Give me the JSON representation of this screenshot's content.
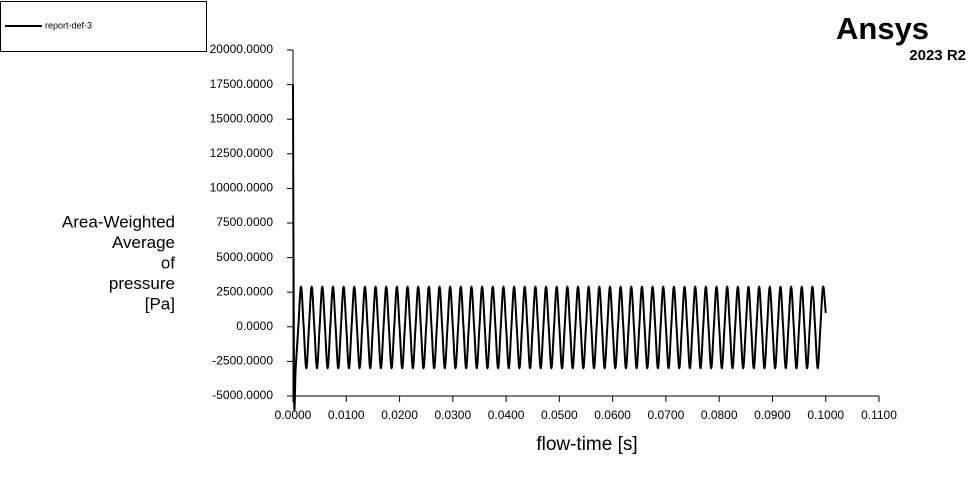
{
  "logo": {
    "name": "Ansys",
    "version": "2023 R2"
  },
  "chart_data": {
    "type": "line",
    "x_label": "flow-time [s]",
    "y_label": [
      "Area-Weighted",
      "Average",
      "of",
      "pressure",
      "[Pa]"
    ],
    "xlim": [
      0,
      0.11
    ],
    "ylim": [
      -5000,
      20000
    ],
    "xticks": [
      {
        "value": 0,
        "label": "0.0000"
      },
      {
        "value": 0.01,
        "label": "0.0100"
      },
      {
        "value": 0.02,
        "label": "0.0200"
      },
      {
        "value": 0.03,
        "label": "0.0300"
      },
      {
        "value": 0.04,
        "label": "0.0400"
      },
      {
        "value": 0.05,
        "label": "0.0500"
      },
      {
        "value": 0.06,
        "label": "0.0600"
      },
      {
        "value": 0.07,
        "label": "0.0700"
      },
      {
        "value": 0.08,
        "label": "0.0800"
      },
      {
        "value": 0.09,
        "label": "0.0900"
      },
      {
        "value": 0.1,
        "label": "0.1000"
      },
      {
        "value": 0.11,
        "label": "0.1100"
      }
    ],
    "yticks": [
      {
        "value": -5000,
        "label": "-5000.0000"
      },
      {
        "value": -2500,
        "label": "-2500.0000"
      },
      {
        "value": 0,
        "label": "0.0000"
      },
      {
        "value": 2500,
        "label": "2500.0000"
      },
      {
        "value": 5000,
        "label": "5000.0000"
      },
      {
        "value": 7500,
        "label": "7500.0000"
      },
      {
        "value": 10000,
        "label": "10000.0000"
      },
      {
        "value": 12500,
        "label": "12500.0000"
      },
      {
        "value": 15000,
        "label": "15000.0000"
      },
      {
        "value": 17500,
        "label": "17500.0000"
      },
      {
        "value": 20000,
        "label": "20000.0000"
      }
    ],
    "x": [
      0,
      0.0002,
      0.0005,
      0.001,
      0.0015,
      0.002,
      0.0025,
      0.003,
      0.0035,
      0.004,
      0.0045,
      0.005,
      0.0055,
      0.006,
      0.0065,
      0.007,
      0.0075,
      0.008,
      0.0085,
      0.009,
      0.0095,
      0.01,
      0.0105,
      0.011,
      0.0115,
      0.012,
      0.0125,
      0.013,
      0.0135,
      0.014,
      0.0145,
      0.015,
      0.0155,
      0.016,
      0.0165,
      0.017,
      0.0175,
      0.018,
      0.0185,
      0.019,
      0.0195,
      0.02,
      0.0205,
      0.021,
      0.0215,
      0.022,
      0.0225,
      0.023,
      0.0235,
      0.024,
      0.0245,
      0.025,
      0.0255,
      0.026,
      0.0265,
      0.027,
      0.0275,
      0.028,
      0.0285,
      0.029,
      0.0295,
      0.03,
      0.0305,
      0.031,
      0.0315,
      0.032,
      0.0325,
      0.033,
      0.0335,
      0.034,
      0.0345,
      0.035,
      0.0355,
      0.036,
      0.0365,
      0.037,
      0.0375,
      0.038,
      0.0385,
      0.039,
      0.0395,
      0.04,
      0.0405,
      0.041,
      0.0415,
      0.042,
      0.0425,
      0.043,
      0.0435,
      0.044,
      0.0445,
      0.045,
      0.0455,
      0.046,
      0.0465,
      0.047,
      0.0475,
      0.048,
      0.0485,
      0.049,
      0.0495,
      0.05,
      0.0505,
      0.051,
      0.0515,
      0.052,
      0.0525,
      0.053,
      0.0535,
      0.054,
      0.0545,
      0.055,
      0.0555,
      0.056,
      0.0565,
      0.057,
      0.0575,
      0.058,
      0.0585,
      0.059,
      0.0595,
      0.06,
      0.0605,
      0.061,
      0.0615,
      0.062,
      0.0625,
      0.063,
      0.0635,
      0.064,
      0.0645,
      0.065,
      0.0655,
      0.066,
      0.0665,
      0.067,
      0.0675,
      0.068,
      0.0685,
      0.069,
      0.0695,
      0.07,
      0.0705,
      0.071,
      0.0715,
      0.072,
      0.0725,
      0.073,
      0.0735,
      0.074,
      0.0745,
      0.075,
      0.0755,
      0.076,
      0.0765,
      0.077,
      0.0775,
      0.078,
      0.0785,
      0.079,
      0.0795,
      0.08,
      0.0805,
      0.081,
      0.0815,
      0.082,
      0.0825,
      0.083,
      0.0835,
      0.084,
      0.0845,
      0.085,
      0.0855,
      0.086,
      0.0865,
      0.087,
      0.0875,
      0.088,
      0.0885,
      0.089,
      0.0895,
      0.09,
      0.0905,
      0.091,
      0.0915,
      0.092,
      0.0925,
      0.093,
      0.0935,
      0.094,
      0.0945,
      0.095,
      0.0955,
      0.096,
      0.0965,
      0.097,
      0.0975,
      0.098,
      0.0985,
      0.099,
      0.0995,
      0.1
    ],
    "series": [
      {
        "name": "report-def-3",
        "color": "#000000",
        "values": [
          17500,
          -4700,
          -3000,
          0,
          2900,
          0,
          -3000,
          0,
          2900,
          0,
          -3000,
          0,
          2900,
          0,
          -3000,
          0,
          2900,
          0,
          -3000,
          0,
          2900,
          0,
          -3000,
          0,
          2900,
          0,
          -3000,
          0,
          2900,
          0,
          -3000,
          0,
          2900,
          0,
          -3000,
          0,
          2900,
          0,
          -3000,
          0,
          2900,
          0,
          -3000,
          0,
          2900,
          0,
          -3000,
          0,
          2900,
          0,
          -3000,
          0,
          2900,
          0,
          -3000,
          0,
          2900,
          0,
          -3000,
          0,
          2900,
          0,
          -3000,
          0,
          2900,
          0,
          -3000,
          0,
          2900,
          0,
          -3000,
          0,
          2900,
          0,
          -3000,
          0,
          2900,
          0,
          -3000,
          0,
          2900,
          0,
          -3000,
          0,
          2900,
          0,
          -3000,
          0,
          2900,
          0,
          -3000,
          0,
          2900,
          0,
          -3000,
          0,
          2900,
          0,
          -3000,
          0,
          2900,
          0,
          -3000,
          0,
          2900,
          0,
          -3000,
          0,
          2900,
          0,
          -3000,
          0,
          2900,
          0,
          -3000,
          0,
          2900,
          0,
          -3000,
          0,
          2900,
          0,
          -3000,
          0,
          2900,
          0,
          -3000,
          0,
          2900,
          0,
          -3000,
          0,
          2900,
          0,
          -3000,
          0,
          2900,
          0,
          -3000,
          0,
          2900,
          0,
          -3000,
          0,
          2900,
          0,
          -3000,
          0,
          2900,
          0,
          -3000,
          0,
          2900,
          0,
          -3000,
          0,
          2900,
          0,
          -3000,
          0,
          2900,
          0,
          -3000,
          0,
          2900,
          0,
          -3000,
          0,
          2900,
          0,
          -3000,
          0,
          2900,
          0,
          -3000,
          0,
          2900,
          0,
          -3000,
          0,
          2900,
          0,
          -3000,
          0,
          2900,
          0,
          -3000,
          0,
          2900,
          0,
          -3000,
          0,
          2900,
          0,
          -3000,
          0,
          2900,
          0,
          -3000,
          0,
          2900,
          1000
        ]
      }
    ]
  }
}
